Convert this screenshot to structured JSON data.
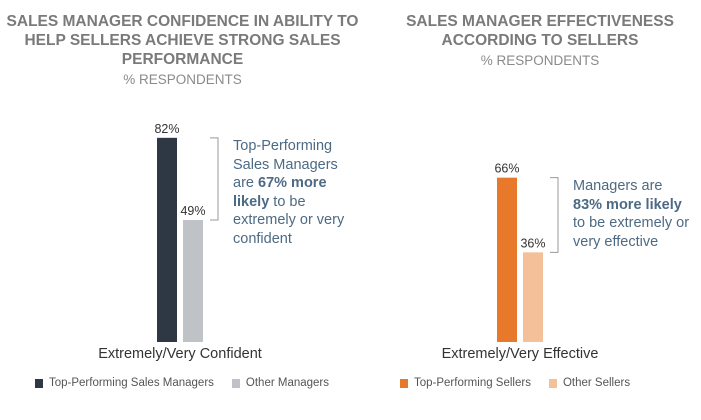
{
  "chart_data": [
    {
      "type": "bar",
      "title": "SALES MANAGER CONFIDENCE IN ABILITY TO HELP SELLERS ACHIEVE STRONG SALES PERFORMANCE",
      "subtitle": "% RESPONDENTS",
      "categories": [
        "Extremely/Very Confident"
      ],
      "series": [
        {
          "name": "Top-Performing Sales Managers",
          "values": [
            82
          ],
          "color": "#2e3744",
          "label": "82%"
        },
        {
          "name": "Other Managers",
          "values": [
            49
          ],
          "color": "#bfc3c7",
          "label": "49%"
        }
      ],
      "annotation": {
        "pre": "Top-Performing Sales Managers are ",
        "bold": "67% more likely",
        "post": " to be extremely or very confident"
      },
      "ylim": [
        0,
        100
      ],
      "legend": "bottom"
    },
    {
      "type": "bar",
      "title": "SALES MANAGER EFFECTIVENESS ACCORDING TO SELLERS",
      "subtitle": "% RESPONDENTS",
      "categories": [
        "Extremely/Very Effective"
      ],
      "series": [
        {
          "name": "Top-Performing Sellers",
          "values": [
            66
          ],
          "color": "#e8782a",
          "label": "66%"
        },
        {
          "name": "Other Sellers",
          "values": [
            36
          ],
          "color": "#f4c09a",
          "label": "36%"
        }
      ],
      "annotation": {
        "pre": "Managers are ",
        "bold": "83% more likely",
        "post": " to be extremely or very effective"
      },
      "ylim": [
        0,
        100
      ],
      "legend": "bottom"
    }
  ]
}
